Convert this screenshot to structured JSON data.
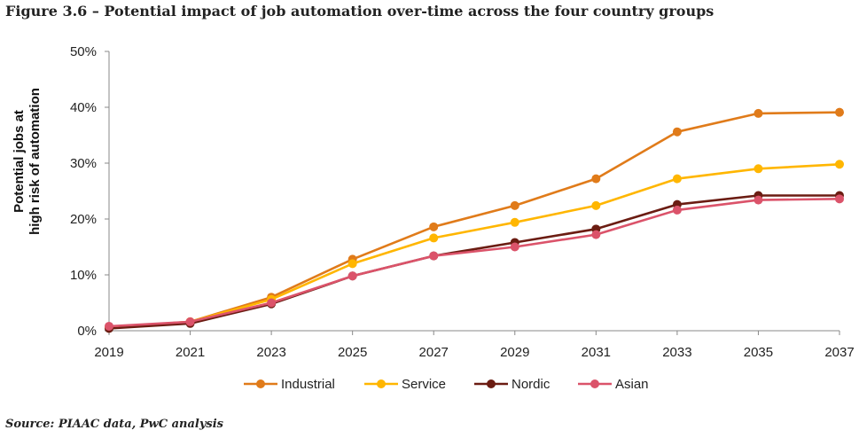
{
  "title": "Figure 3.6 – Potential impact of job automation over-time across the four country groups",
  "source": "Source: PIAAC data, PwC analysis",
  "chart_data": {
    "type": "line",
    "title": "Figure 3.6 – Potential impact of job automation over-time across the four country groups",
    "xlabel": "",
    "ylabel_lines": [
      "Potential jobs at",
      "high risk of automation"
    ],
    "categories": [
      "2019",
      "2021",
      "2023",
      "2025",
      "2027",
      "2029",
      "2031",
      "2033",
      "2035",
      "2037"
    ],
    "ylim": [
      0,
      50
    ],
    "yticks": [
      0,
      10,
      20,
      30,
      40,
      50
    ],
    "ytick_labels": [
      "0%",
      "10%",
      "20%",
      "30%",
      "40%",
      "50%"
    ],
    "grid": false,
    "legend_position": "bottom",
    "series": [
      {
        "name": "Industrial",
        "color": "#e07b1a",
        "values": [
          0.6,
          1.6,
          6.0,
          12.8,
          18.6,
          22.4,
          27.2,
          35.6,
          38.9,
          39.1
        ]
      },
      {
        "name": "Service",
        "color": "#ffb600",
        "values": [
          0.6,
          1.6,
          5.6,
          12.0,
          16.6,
          19.4,
          22.4,
          27.2,
          29.0,
          29.8
        ]
      },
      {
        "name": "Nordic",
        "color": "#6b1c12",
        "values": [
          0.4,
          1.3,
          4.8,
          9.8,
          13.4,
          15.8,
          18.2,
          22.6,
          24.2,
          24.2
        ]
      },
      {
        "name": "Asian",
        "color": "#db536a",
        "values": [
          0.8,
          1.6,
          5.0,
          9.8,
          13.4,
          15.0,
          17.2,
          21.6,
          23.4,
          23.6
        ]
      }
    ]
  }
}
